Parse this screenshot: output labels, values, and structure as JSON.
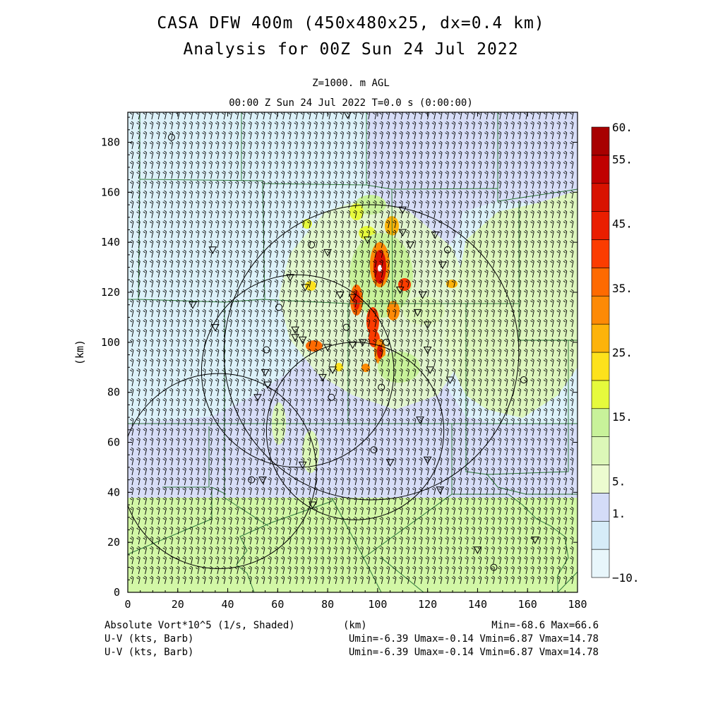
{
  "header": {
    "title": "CASA DFW 400m (450x480x25, dx=0.4 km)",
    "subtitle": "Analysis for 00Z Sun 24 Jul 2022",
    "level": "Z=1000. m AGL",
    "time": "00:00 Z Sun 24 Jul 2022    T=0.0 s (0:00:00)"
  },
  "footer": {
    "field": "Absolute Vort*10^5 (1/s, Shaded)",
    "xunit": "(km)",
    "minmax": "Min=-68.6 Max=66.6",
    "barb1_label": "U-V (kts, Barb)",
    "barb1_stats": "Umin=-6.39 Umax=-0.14 Vmin=6.87 Vmax=14.78",
    "barb2_label": "U-V (kts, Barb)",
    "barb2_stats": "Umin=-6.39 Umax=-0.14 Vmin=6.87 Vmax=14.78"
  },
  "chart_data": {
    "type": "heatmap",
    "field": "Absolute Vort*10^5 (1/s)",
    "xlabel": "(km)",
    "ylabel": "(km)",
    "xlim": [
      0,
      180
    ],
    "ylim": [
      0,
      192
    ],
    "xticks": [
      "0",
      "20",
      "40",
      "60",
      "80",
      "100",
      "120",
      "140",
      "160",
      "180"
    ],
    "yticks": [
      "0",
      "20",
      "40",
      "60",
      "80",
      "100",
      "120",
      "140",
      "160",
      "180"
    ],
    "colorbar": {
      "labels": [
        {
          "level": 60,
          "text": "60."
        },
        {
          "level": 55,
          "text": "55."
        },
        {
          "level": 45,
          "text": "45."
        },
        {
          "level": 35,
          "text": "35."
        },
        {
          "level": 25,
          "text": "25."
        },
        {
          "level": 15,
          "text": "15."
        },
        {
          "level": 5,
          "text": "5."
        },
        {
          "level": 1,
          "text": "1."
        },
        {
          "level": -10,
          "text": "−10."
        }
      ],
      "colors": [
        "#e8f6fb",
        "#d6ecf8",
        "#d4dcf8",
        "#ecfbd0",
        "#dcf7b8",
        "#c8f29a",
        "#e6fa3c",
        "#fde21c",
        "#fdb30a",
        "#fd8a06",
        "#fe6a00",
        "#fb3c00",
        "#ea1e00",
        "#d81200",
        "#c00000",
        "#a80000"
      ]
    },
    "background_regions": [
      {
        "name": "light-blue",
        "color": "#dcf1f9",
        "y_range": [
          38,
          192
        ]
      },
      {
        "name": "green",
        "color": "#d2f7a6",
        "y_range": [
          0,
          38
        ]
      },
      {
        "name": "lavender",
        "color": "#d7ddf7"
      },
      {
        "name": "light-green",
        "color": "#ddf5bd"
      }
    ],
    "radar_rings": [
      {
        "center": [
          97.5,
          96
        ],
        "radius": 59
      },
      {
        "center": [
          68,
          88.5
        ],
        "radius": 38.5
      },
      {
        "center": [
          91,
          64.5
        ],
        "radius": 35.5
      },
      {
        "center": [
          36.5,
          48.5
        ],
        "radius": 39
      }
    ],
    "stations": [
      {
        "type": "tri",
        "x": 88,
        "y": 191
      },
      {
        "type": "circ",
        "x": 17.5,
        "y": 182
      },
      {
        "type": "tri",
        "x": 110,
        "y": 153
      },
      {
        "type": "tri",
        "x": 34,
        "y": 137
      },
      {
        "type": "tri",
        "x": 123,
        "y": 143
      },
      {
        "type": "tri",
        "x": 110,
        "y": 144
      },
      {
        "type": "circ",
        "x": 73.5,
        "y": 139
      },
      {
        "type": "tri",
        "x": 80,
        "y": 136
      },
      {
        "type": "tri",
        "x": 96,
        "y": 141
      },
      {
        "type": "tri",
        "x": 113,
        "y": 139
      },
      {
        "type": "circ",
        "x": 128,
        "y": 137
      },
      {
        "type": "tri",
        "x": 126,
        "y": 131
      },
      {
        "type": "tri",
        "x": 65,
        "y": 126
      },
      {
        "type": "tri",
        "x": 71,
        "y": 122
      },
      {
        "type": "tri",
        "x": 85,
        "y": 119
      },
      {
        "type": "tri",
        "x": 90,
        "y": 118
      },
      {
        "type": "tri",
        "x": 109,
        "y": 121
      },
      {
        "type": "tri",
        "x": 118,
        "y": 119
      },
      {
        "type": "tri",
        "x": 26,
        "y": 115
      },
      {
        "type": "circ",
        "x": 60.5,
        "y": 114
      },
      {
        "type": "tri",
        "x": 35,
        "y": 106
      },
      {
        "type": "tri",
        "x": 67,
        "y": 105
      },
      {
        "type": "tri",
        "x": 116,
        "y": 112
      },
      {
        "type": "tri",
        "x": 120,
        "y": 107
      },
      {
        "type": "circ",
        "x": 87.5,
        "y": 106
      },
      {
        "type": "tri",
        "x": 67,
        "y": 102
      },
      {
        "type": "tri",
        "x": 70,
        "y": 101
      },
      {
        "type": "circ",
        "x": 55.5,
        "y": 97
      },
      {
        "type": "tri",
        "x": 80,
        "y": 98
      },
      {
        "type": "tri",
        "x": 90,
        "y": 99
      },
      {
        "type": "tri",
        "x": 94,
        "y": 100
      },
      {
        "type": "circ",
        "x": 103.5,
        "y": 100
      },
      {
        "type": "tri",
        "x": 120,
        "y": 97
      },
      {
        "type": "tri",
        "x": 55,
        "y": 88
      },
      {
        "type": "tri",
        "x": 82,
        "y": 89
      },
      {
        "type": "tri",
        "x": 121,
        "y": 89
      },
      {
        "type": "tri",
        "x": 78,
        "y": 86
      },
      {
        "type": "tri",
        "x": 129,
        "y": 85
      },
      {
        "type": "tri",
        "x": 56,
        "y": 83
      },
      {
        "type": "circ",
        "x": 101.5,
        "y": 82
      },
      {
        "type": "tri",
        "x": 52,
        "y": 78
      },
      {
        "type": "circ",
        "x": 81.5,
        "y": 78
      },
      {
        "type": "circ",
        "x": 158.5,
        "y": 85
      },
      {
        "type": "tri",
        "x": 117,
        "y": 69
      },
      {
        "type": "circ",
        "x": 98.5,
        "y": 57
      },
      {
        "type": "tri",
        "x": 70,
        "y": 51
      },
      {
        "type": "tri",
        "x": 105,
        "y": 52
      },
      {
        "type": "tri",
        "x": 120,
        "y": 53
      },
      {
        "type": "circ",
        "x": 49.5,
        "y": 45
      },
      {
        "type": "tri",
        "x": 54,
        "y": 45
      },
      {
        "type": "tri",
        "x": 125,
        "y": 41
      },
      {
        "type": "tri",
        "x": 74,
        "y": 35
      },
      {
        "type": "tri",
        "x": 140,
        "y": 17
      },
      {
        "type": "tri",
        "x": 163,
        "y": 21
      },
      {
        "type": "circ",
        "x": 146.5,
        "y": 10
      }
    ],
    "wind_barbs": {
      "units": "kts",
      "u_range": [
        -6.39,
        -0.14
      ],
      "v_range": [
        6.87,
        14.78
      ]
    },
    "stats": {
      "min": -68.6,
      "max": 66.6
    }
  }
}
